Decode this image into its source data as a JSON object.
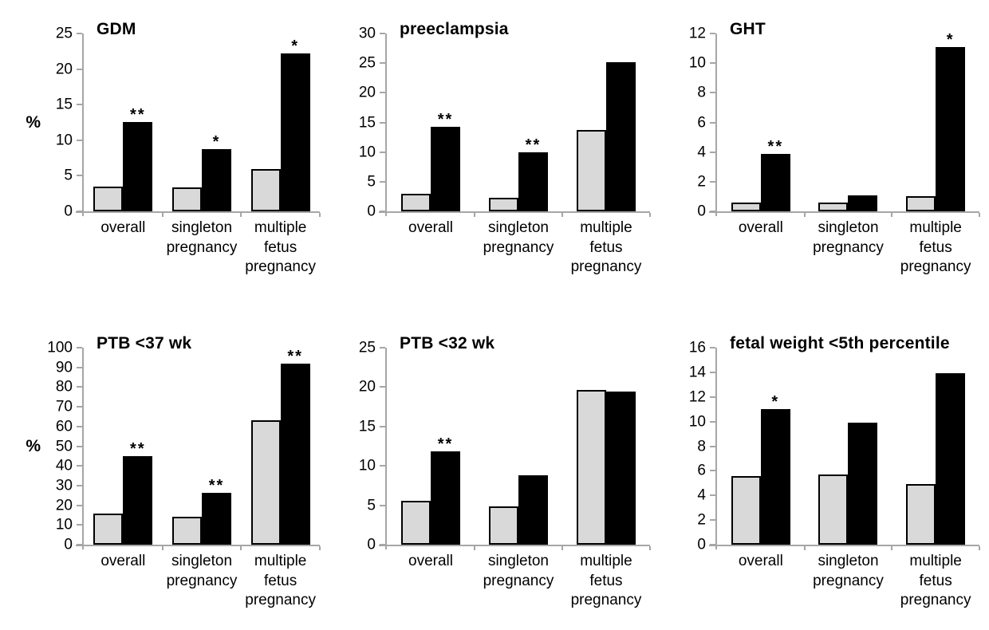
{
  "figure_title": "",
  "chart_data": {
    "type": "bar",
    "ylabel": "%",
    "categories": [
      "overall",
      "singleton pregnancy",
      "multiple fetus pregnancy"
    ],
    "category_lines": [
      [
        "overall"
      ],
      [
        "singleton",
        "pregnancy"
      ],
      [
        "multiple",
        "fetus",
        "pregnancy"
      ]
    ],
    "legend_position": "none",
    "grid": false,
    "colors": {
      "gray_bar": "#d9d9d9",
      "black_bar": "#000000",
      "bar_border": "#000000",
      "axis": "#a6a6a6",
      "text": "#000000"
    },
    "charts": [
      {
        "title": "GDM",
        "ylim": [
          0,
          25
        ],
        "ytick_step": 5,
        "show_ylabel": true,
        "series": [
          {
            "name": "gray",
            "color": "#d9d9d9",
            "values": [
              3.5,
              3.4,
              5.9
            ]
          },
          {
            "name": "black",
            "color": "#000000",
            "values": [
              12.6,
              8.8,
              22.2
            ]
          }
        ],
        "significance": [
          "**",
          "*",
          "*"
        ]
      },
      {
        "title": "preeclampsia",
        "ylim": [
          0,
          30
        ],
        "ytick_step": 5,
        "show_ylabel": false,
        "series": [
          {
            "name": "gray",
            "color": "#d9d9d9",
            "values": [
              2.9,
              2.3,
              13.7
            ]
          },
          {
            "name": "black",
            "color": "#000000",
            "values": [
              14.3,
              9.9,
              25.1
            ]
          }
        ],
        "significance": [
          "**",
          "**",
          ""
        ]
      },
      {
        "title": "GHT",
        "ylim": [
          0,
          12
        ],
        "ytick_step": 2,
        "show_ylabel": false,
        "series": [
          {
            "name": "gray",
            "color": "#d9d9d9",
            "values": [
              0.6,
              0.6,
              1.0
            ]
          },
          {
            "name": "black",
            "color": "#000000",
            "values": [
              3.9,
              1.1,
              11.1
            ]
          }
        ],
        "significance": [
          "**",
          "",
          "*"
        ]
      },
      {
        "title": "PTB <37 wk",
        "ylim": [
          0,
          100
        ],
        "ytick_step": 10,
        "show_ylabel": true,
        "series": [
          {
            "name": "gray",
            "color": "#d9d9d9",
            "values": [
              16,
              14,
              63
            ]
          },
          {
            "name": "black",
            "color": "#000000",
            "values": [
              45,
              26.5,
              92
            ]
          }
        ],
        "significance": [
          "**",
          "**",
          "**"
        ]
      },
      {
        "title": "PTB <32 wk",
        "ylim": [
          0,
          25
        ],
        "ytick_step": 5,
        "show_ylabel": false,
        "series": [
          {
            "name": "gray",
            "color": "#d9d9d9",
            "values": [
              5.6,
              4.9,
              19.6
            ]
          },
          {
            "name": "black",
            "color": "#000000",
            "values": [
              11.9,
              8.8,
              19.4
            ]
          }
        ],
        "significance": [
          "**",
          "",
          ""
        ]
      },
      {
        "title": "fetal weight <5th percentile",
        "ylim": [
          0,
          16
        ],
        "ytick_step": 2,
        "show_ylabel": false,
        "series": [
          {
            "name": "gray",
            "color": "#d9d9d9",
            "values": [
              5.6,
              5.7,
              4.9
            ]
          },
          {
            "name": "black",
            "color": "#000000",
            "values": [
              11.0,
              9.9,
              13.9
            ]
          }
        ],
        "significance": [
          "*",
          "",
          ""
        ]
      }
    ]
  }
}
